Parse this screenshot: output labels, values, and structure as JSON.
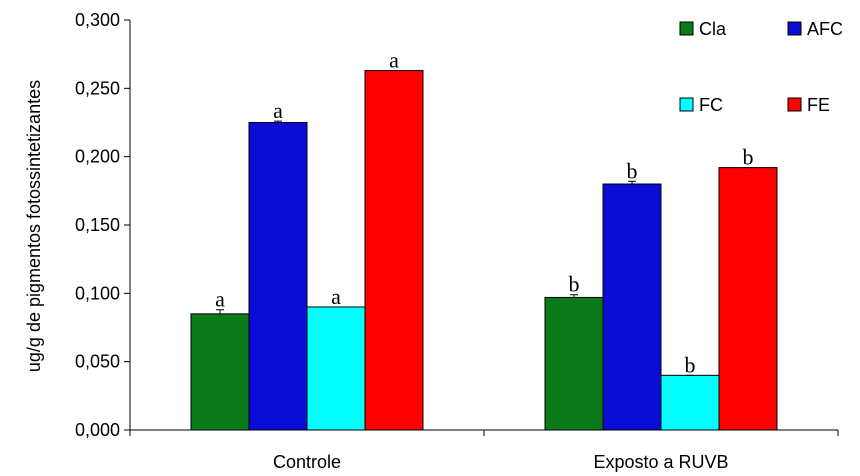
{
  "chart_data": {
    "type": "bar",
    "title": "",
    "xlabel": "",
    "ylabel": "ug/g de pigmentos fotossintetizantes",
    "ylim": [
      0,
      0.3
    ],
    "yticks": [
      "0,000",
      "0,050",
      "0,100",
      "0,150",
      "0,200",
      "0,250",
      "0,300"
    ],
    "categories": [
      "Controle",
      "Exposto a RUVB"
    ],
    "grid": false,
    "legend_position": "top-right",
    "series": [
      {
        "name": "Cla",
        "color": "#0b7a18",
        "values": [
          0.085,
          0.097
        ],
        "errors": [
          0.003,
          0.002
        ],
        "labels": [
          "a",
          "b"
        ]
      },
      {
        "name": "AFC",
        "color": "#0b0bd6",
        "values": [
          0.225,
          0.18
        ],
        "errors": [
          0.001,
          0.002
        ],
        "labels": [
          "a",
          "b"
        ]
      },
      {
        "name": "FC",
        "color": "#00ffff",
        "values": [
          0.09,
          0.04
        ],
        "errors": [
          0.0,
          0.0
        ],
        "labels": [
          "a",
          "b"
        ]
      },
      {
        "name": "FE",
        "color": "#ff0000",
        "values": [
          0.263,
          0.192
        ],
        "errors": [
          0.0,
          0.0
        ],
        "labels": [
          "a",
          "b"
        ]
      }
    ]
  }
}
